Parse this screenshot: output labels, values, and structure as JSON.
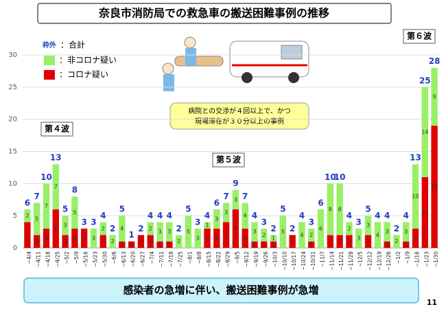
{
  "chart_data": {
    "type": "stacked-bar",
    "title": "奈良市消防局での救急車の搬送困難事例の推移",
    "categories": [
      "~4/4",
      "~4/11",
      "~4/18",
      "~4/25",
      "~5/2",
      "~5/9",
      "~5/16",
      "~5/23",
      "~5/30",
      "~6/6",
      "~6/13",
      "~6/20",
      "~6/27",
      "~7/4",
      "~7/11",
      "~7/18",
      "~7/25",
      "~8/1",
      "~8/8",
      "~8/15",
      "~8/22",
      "~8/29",
      "~9/5",
      "~9/12",
      "~9/19",
      "~9/26",
      "~10/3",
      "~10/10",
      "~10/17",
      "~10/24",
      "~10/31",
      "~11/7",
      "~11/14",
      "~11/21",
      "~11/28",
      "~12/5",
      "~12/12",
      "~12/19",
      "~12/26",
      "~1/2",
      "~1/9",
      "~1/16",
      "~1/23",
      "~1/30"
    ],
    "series": [
      {
        "name": "：コロナ疑い",
        "color": "#e00000",
        "values": [
          4,
          2,
          3,
          6,
          2,
          3,
          3,
          0,
          2,
          0,
          1,
          1,
          2,
          2,
          1,
          1,
          0,
          0,
          0,
          3,
          3,
          4,
          6,
          3,
          1,
          1,
          1,
          0,
          2,
          0,
          1,
          0,
          2,
          2,
          2,
          0,
          2,
          0,
          1,
          0,
          1,
          3,
          11,
          19
        ]
      },
      {
        "name": "：非コロナ疑い",
        "color": "#99f066",
        "values": [
          2,
          5,
          7,
          7,
          3,
          5,
          0,
          3,
          2,
          2,
          4,
          0,
          0,
          2,
          3,
          3,
          2,
          5,
          3,
          1,
          3,
          3,
          3,
          4,
          3,
          2,
          1,
          5,
          0,
          4,
          2,
          6,
          8,
          8,
          2,
          3,
          3,
          4,
          3,
          2,
          3,
          10,
          14,
          9
        ]
      }
    ],
    "totals": [
      6,
      7,
      10,
      13,
      5,
      8,
      3,
      3,
      4,
      2,
      5,
      1,
      2,
      4,
      4,
      4,
      2,
      5,
      3,
      4,
      6,
      7,
      9,
      7,
      4,
      3,
      2,
      5,
      2,
      4,
      3,
      6,
      10,
      10,
      4,
      3,
      5,
      4,
      4,
      2,
      4,
      13,
      25,
      28
    ],
    "total_legend": {
      "label": "枠外",
      "text": "：合計"
    },
    "ylim": [
      0,
      30
    ],
    "yticks": [
      0,
      5,
      10,
      15,
      20,
      25,
      30
    ],
    "grid": true,
    "waves": [
      "第４波",
      "第５波",
      "第６波"
    ],
    "note": [
      "病院との交渉が４回以上で、かつ",
      "現場滞在が３０分以上の事例"
    ],
    "footer": "感染者の急増に伴い、搬送困難事例が急増",
    "page_number": "11"
  }
}
